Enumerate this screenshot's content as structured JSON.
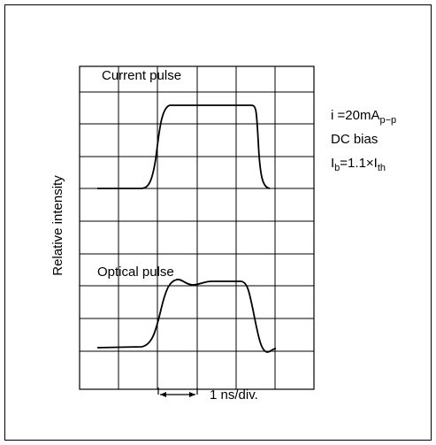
{
  "current_label": "Current pulse",
  "optical_label": "Optical pulse",
  "y_axis_label": "Relative intensity",
  "scale_label": "1 ns/div.",
  "condition": {
    "current": {
      "main": "i =20mA",
      "sub": "p−p"
    },
    "bias_title": "DC bias",
    "bias": {
      "symbol": "I",
      "symbol_sub": "b",
      "relation": "=1.1×I",
      "relation_sub": "th"
    }
  }
}
